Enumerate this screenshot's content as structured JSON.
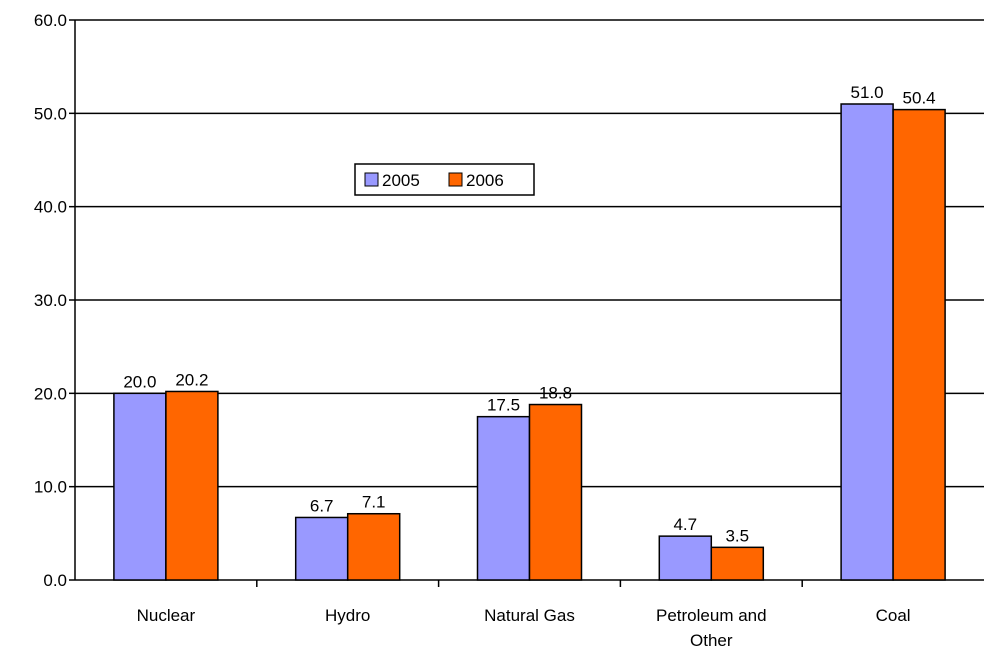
{
  "chart_data": {
    "type": "bar",
    "categories": [
      "Nuclear",
      "Hydro",
      "Natural Gas",
      "Petroleum and Other",
      "Coal"
    ],
    "category_lines": [
      [
        "Nuclear"
      ],
      [
        "Hydro"
      ],
      [
        "Natural Gas"
      ],
      [
        "Petroleum and",
        "Other"
      ],
      [
        "Coal"
      ]
    ],
    "series": [
      {
        "name": "2005",
        "values": [
          20.0,
          6.7,
          17.5,
          4.7,
          51.0
        ],
        "labels": [
          "20.0",
          "6.7",
          "17.5",
          "4.7",
          "51.0"
        ],
        "color": "#9999ff"
      },
      {
        "name": "2006",
        "values": [
          20.2,
          7.1,
          18.8,
          3.5,
          50.4
        ],
        "labels": [
          "20.2",
          "7.1",
          "18.8",
          "3.5",
          "50.4"
        ],
        "color": "#ff6600"
      }
    ],
    "ylim": [
      0,
      60
    ],
    "yticks": [
      0,
      10,
      20,
      30,
      40,
      50,
      60
    ],
    "ytick_labels": [
      "0.0",
      "10.0",
      "20.0",
      "30.0",
      "40.0",
      "50.0",
      "60.0"
    ],
    "grid": true,
    "legend_position": "upper-center",
    "title": "",
    "xlabel": "",
    "ylabel": ""
  }
}
